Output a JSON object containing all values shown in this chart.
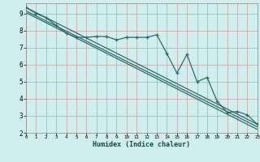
{
  "xlabel": "Humidex (Indice chaleur)",
  "bg_color": "#d0eeed",
  "grid_color": "#c8a0a0",
  "line_color": "#2d6b6b",
  "xmin": 0,
  "xmax": 23,
  "ymin": 2,
  "ymax": 9.6,
  "yticks": [
    2,
    3,
    4,
    5,
    6,
    7,
    8,
    9
  ],
  "xticks": [
    0,
    1,
    2,
    3,
    4,
    5,
    6,
    7,
    8,
    9,
    10,
    11,
    12,
    13,
    14,
    15,
    16,
    17,
    18,
    19,
    20,
    21,
    22,
    23
  ],
  "curve_x": [
    0,
    1,
    2,
    3,
    4,
    5,
    6,
    7,
    8,
    9,
    10,
    11,
    12,
    13,
    14,
    15,
    16,
    17,
    18,
    19,
    20,
    21,
    22,
    23
  ],
  "curve_y": [
    9.35,
    9.0,
    8.75,
    8.3,
    7.85,
    7.6,
    7.6,
    7.65,
    7.65,
    7.45,
    7.6,
    7.6,
    7.6,
    7.75,
    6.65,
    5.5,
    6.6,
    5.0,
    5.25,
    3.85,
    3.2,
    3.25,
    3.05,
    2.5
  ],
  "line1_x": [
    0,
    23
  ],
  "line1_y": [
    9.35,
    2.5
  ],
  "line2_x": [
    0,
    23
  ],
  "line2_y": [
    9.15,
    2.35
  ],
  "line3_x": [
    0,
    23
  ],
  "line3_y": [
    9.05,
    2.2
  ]
}
